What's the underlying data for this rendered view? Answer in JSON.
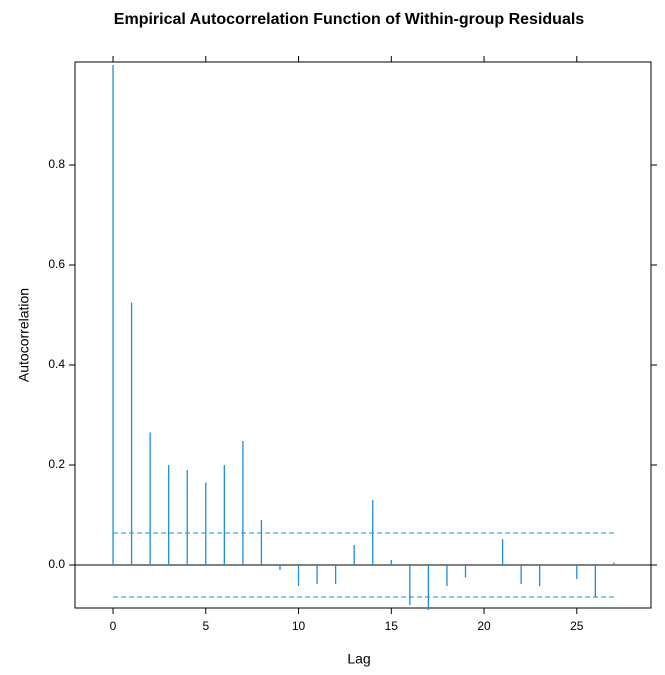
{
  "chart_data": {
    "type": "acf",
    "title": "Empirical Autocorrelation Function of Within-group Residuals",
    "x_label": "Lag",
    "y_label": "Autocorrelation",
    "x": [
      0,
      1,
      2,
      3,
      4,
      5,
      6,
      7,
      8,
      9,
      10,
      11,
      12,
      13,
      14,
      15,
      16,
      17,
      18,
      19,
      20,
      21,
      22,
      23,
      24,
      25,
      26,
      27
    ],
    "values": [
      1.0,
      0.525,
      0.265,
      0.2,
      0.19,
      0.165,
      0.2,
      0.248,
      0.09,
      -0.01,
      -0.042,
      -0.038,
      -0.038,
      0.04,
      0.13,
      0.01,
      -0.08,
      -0.09,
      -0.042,
      -0.025,
      0.0,
      0.052,
      -0.038,
      -0.042,
      0.0,
      -0.028,
      -0.065,
      0.005
    ],
    "bounds": [
      0.064,
      -0.064
    ],
    "reference_line": 0,
    "color": "#1a8fdc",
    "xlim": [
      -2.05,
      29.0
    ],
    "ylim": [
      -0.086,
      1.006
    ],
    "xticks": [
      0,
      5,
      10,
      15,
      20,
      25
    ],
    "yticks": [
      {
        "value": 0,
        "label": "0.0"
      },
      0.2,
      0.4,
      0.6,
      0.8
    ]
  }
}
